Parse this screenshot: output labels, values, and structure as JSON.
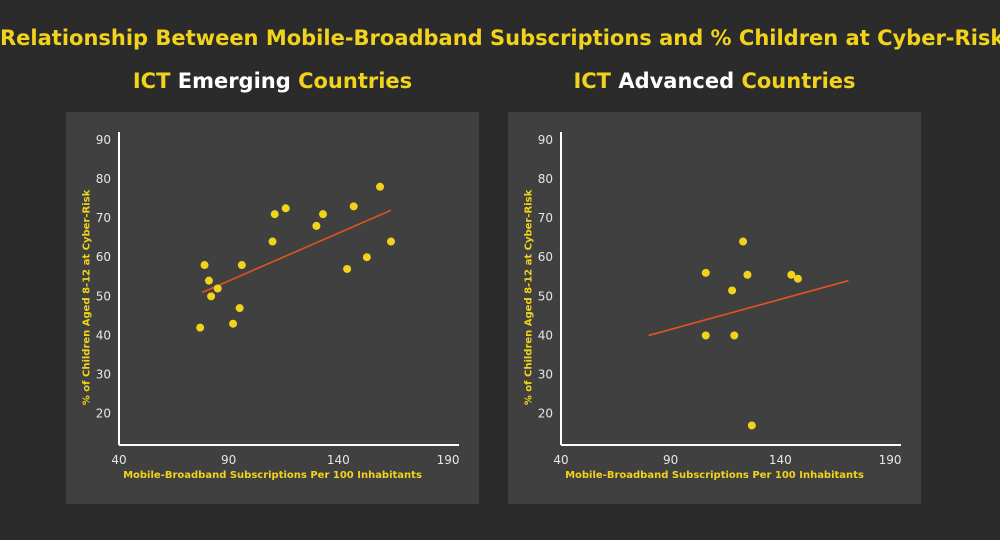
{
  "title": "Relationship Between Mobile-Broadband Subscriptions and % Children at Cyber-Risk",
  "colors": {
    "accent": "#f2d31b",
    "trend": "#e2531f",
    "panel": "#404040",
    "background": "#2b2b2b"
  },
  "chart_data": [
    {
      "type": "scatter",
      "title_parts": [
        {
          "text": "ICT",
          "color": "yellow"
        },
        {
          "text": "Emerging",
          "color": "white"
        },
        {
          "text": "Countries",
          "color": "yellow"
        }
      ],
      "xlabel": "Mobile-Broadband Subscriptions Per 100 Inhabitants",
      "ylabel": "% of Children Aged 8-12 at Cyber-Risk",
      "xlim": [
        40,
        195
      ],
      "ylim": [
        12,
        92
      ],
      "x_ticks": [
        40,
        90,
        140,
        190
      ],
      "y_ticks": [
        20,
        30,
        40,
        50,
        60,
        70,
        80,
        90
      ],
      "grid": false,
      "points": [
        {
          "x": 77,
          "y": 42
        },
        {
          "x": 79,
          "y": 58
        },
        {
          "x": 81,
          "y": 54
        },
        {
          "x": 82,
          "y": 50
        },
        {
          "x": 85,
          "y": 52
        },
        {
          "x": 92,
          "y": 43
        },
        {
          "x": 95,
          "y": 47
        },
        {
          "x": 96,
          "y": 58
        },
        {
          "x": 110,
          "y": 64
        },
        {
          "x": 111,
          "y": 71
        },
        {
          "x": 116,
          "y": 72.5
        },
        {
          "x": 130,
          "y": 68
        },
        {
          "x": 133,
          "y": 71
        },
        {
          "x": 144,
          "y": 57
        },
        {
          "x": 147,
          "y": 73
        },
        {
          "x": 153,
          "y": 60
        },
        {
          "x": 159,
          "y": 78
        },
        {
          "x": 164,
          "y": 64
        }
      ],
      "trendline": {
        "x": [
          78,
          164
        ],
        "y": [
          51,
          72
        ]
      }
    },
    {
      "type": "scatter",
      "title_parts": [
        {
          "text": "ICT",
          "color": "yellow"
        },
        {
          "text": "Advanced",
          "color": "white"
        },
        {
          "text": "Countries",
          "color": "yellow"
        }
      ],
      "xlabel": "Mobile-Broadband Subscriptions Per 100 Inhabitants",
      "ylabel": "% of Children Aged 8-12 at Cyber-Risk",
      "xlim": [
        40,
        195
      ],
      "ylim": [
        12,
        92
      ],
      "x_ticks": [
        40,
        90,
        140,
        190
      ],
      "y_ticks": [
        20,
        30,
        40,
        50,
        60,
        70,
        80,
        90
      ],
      "grid": false,
      "points": [
        {
          "x": 106,
          "y": 56
        },
        {
          "x": 106,
          "y": 40
        },
        {
          "x": 118,
          "y": 51.5
        },
        {
          "x": 119,
          "y": 40
        },
        {
          "x": 123,
          "y": 64
        },
        {
          "x": 125,
          "y": 55.5
        },
        {
          "x": 127,
          "y": 17
        },
        {
          "x": 145,
          "y": 55.5
        },
        {
          "x": 148,
          "y": 54.5
        }
      ],
      "trendline": {
        "x": [
          80,
          171
        ],
        "y": [
          40,
          54
        ]
      }
    }
  ]
}
